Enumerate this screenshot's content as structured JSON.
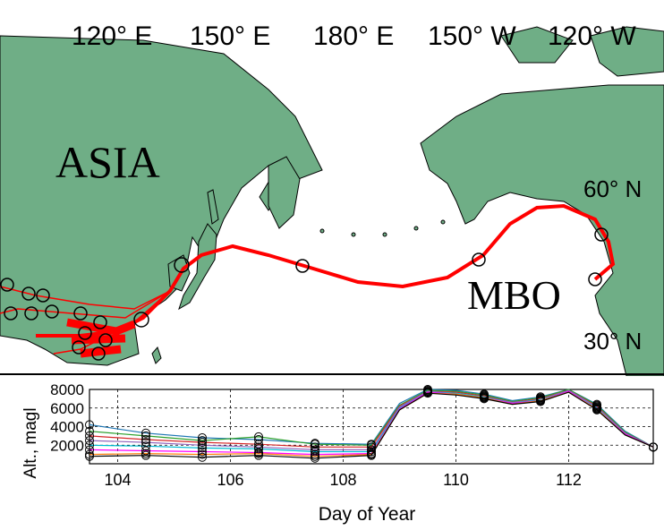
{
  "map": {
    "lon_labels": [
      "120° E",
      "150° E",
      "180° E",
      "150° W",
      "120° W"
    ],
    "lat_labels": [
      "60° N",
      "30° N"
    ],
    "region_labels": {
      "asia": "ASIA",
      "site": "MBO"
    },
    "colors": {
      "ocean": "#ffffff",
      "land": "#6fae86",
      "trajectory": "#ff0000",
      "coast": "#000000"
    }
  },
  "chart_data": {
    "type": "line",
    "title": "",
    "xlabel": "Day of Year",
    "ylabel": "Alt., magl",
    "xlim": [
      103.5,
      113.5
    ],
    "ylim": [
      0,
      8000
    ],
    "xticks": [
      104,
      106,
      108,
      110,
      112
    ],
    "yticks": [
      2000,
      4000,
      6000,
      8000
    ],
    "grid": true,
    "x": [
      103.5,
      104.5,
      105.5,
      106.5,
      107.5,
      108.5,
      109,
      109.5,
      110,
      110.5,
      111,
      111.5,
      112,
      112.5,
      113,
      113.5
    ],
    "series": [
      {
        "values": [
          4200,
          3300,
          2800,
          2600,
          2200,
          2100,
          6500,
          8000,
          7900,
          7500,
          6800,
          7200,
          8000,
          6400,
          3500,
          1800
        ],
        "color": "#1f77b4"
      },
      {
        "values": [
          3500,
          3000,
          2500,
          2900,
          2100,
          2000,
          6300,
          7900,
          7800,
          7400,
          6700,
          7100,
          8000,
          6300,
          3400,
          1800
        ],
        "color": "#2ca02c"
      },
      {
        "values": [
          3000,
          2600,
          2300,
          2100,
          1800,
          1800,
          6200,
          7800,
          7700,
          7300,
          6600,
          7000,
          7900,
          6200,
          3300,
          1800
        ],
        "color": "#d62728"
      },
      {
        "values": [
          2500,
          2300,
          2000,
          1800,
          1500,
          1500,
          6100,
          7800,
          7600,
          7200,
          6600,
          6900,
          7900,
          6100,
          3300,
          1800
        ],
        "color": "#9467bd"
      },
      {
        "values": [
          2000,
          1900,
          1700,
          1600,
          1300,
          1300,
          6000,
          7700,
          7600,
          7200,
          6500,
          6900,
          7800,
          6000,
          3200,
          1800
        ],
        "color": "#00bcd4"
      },
      {
        "values": [
          1500,
          1400,
          1300,
          1200,
          1000,
          1100,
          5900,
          7700,
          7500,
          7100,
          6500,
          6800,
          7800,
          5900,
          3200,
          1800
        ],
        "color": "#ff00ff"
      },
      {
        "values": [
          1000,
          1100,
          1000,
          1100,
          800,
          1000,
          5800,
          7600,
          7500,
          7100,
          6400,
          6800,
          7700,
          5900,
          3100,
          1800
        ],
        "color": "#ff7f0e"
      },
      {
        "values": [
          800,
          900,
          700,
          900,
          600,
          900,
          5800,
          7600,
          7400,
          7000,
          6400,
          6700,
          7700,
          5800,
          3100,
          1800
        ],
        "color": "#000000"
      }
    ]
  }
}
